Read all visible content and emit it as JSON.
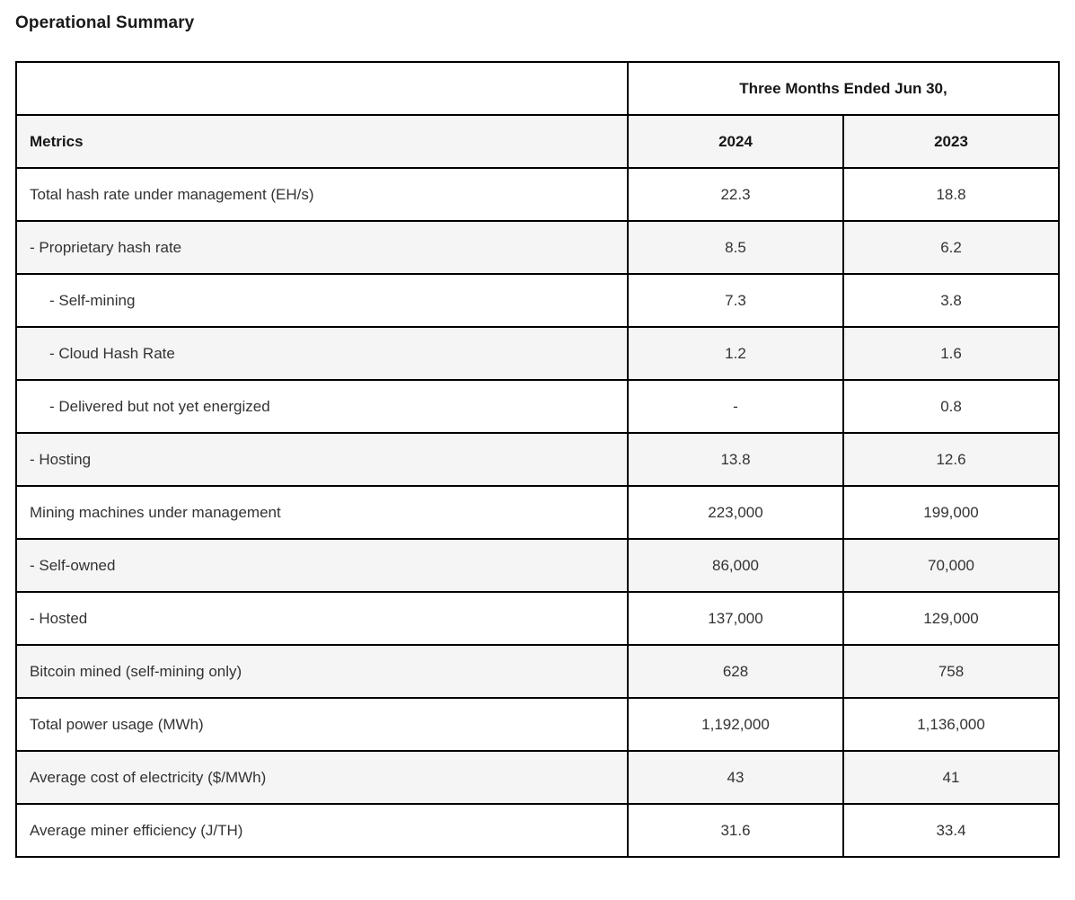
{
  "page": {
    "title": "Operational Summary"
  },
  "table": {
    "header": {
      "period_label": "Three Months Ended Jun 30,",
      "metrics_label": "Metrics",
      "years": [
        "2024",
        "2023"
      ]
    },
    "rows": [
      {
        "metric": "Total hash rate under management (EH/s)",
        "indent": 0,
        "y2024": "22.3",
        "y2023": "18.8"
      },
      {
        "metric": "- Proprietary hash rate",
        "indent": 0,
        "y2024": "8.5",
        "y2023": "6.2"
      },
      {
        "metric": "- Self-mining",
        "indent": 1,
        "y2024": "7.3",
        "y2023": "3.8"
      },
      {
        "metric": "- Cloud Hash Rate",
        "indent": 1,
        "y2024": "1.2",
        "y2023": "1.6"
      },
      {
        "metric": "- Delivered but not yet energized",
        "indent": 1,
        "y2024": "-",
        "y2023": "0.8"
      },
      {
        "metric": "- Hosting",
        "indent": 0,
        "y2024": "13.8",
        "y2023": "12.6"
      },
      {
        "metric": "Mining machines under management",
        "indent": 0,
        "y2024": "223,000",
        "y2023": "199,000"
      },
      {
        "metric": "- Self-owned",
        "indent": 0,
        "y2024": "86,000",
        "y2023": "70,000"
      },
      {
        "metric": "- Hosted",
        "indent": 0,
        "y2024": "137,000",
        "y2023": "129,000"
      },
      {
        "metric": "Bitcoin mined (self-mining only)",
        "indent": 0,
        "y2024": "628",
        "y2023": "758"
      },
      {
        "metric": "Total power usage (MWh)",
        "indent": 0,
        "y2024": "1,192,000",
        "y2023": "1,136,000"
      },
      {
        "metric": "Average cost of electricity ($/MWh)",
        "indent": 0,
        "y2024": "43",
        "y2023": "41"
      },
      {
        "metric": "Average miner efficiency (J/TH)",
        "indent": 0,
        "y2024": "31.6",
        "y2023": "33.4"
      }
    ],
    "colors": {
      "stripe_background": "#f5f5f5",
      "border": "#000000",
      "body_text": "#333333",
      "header_text": "#161616"
    }
  }
}
